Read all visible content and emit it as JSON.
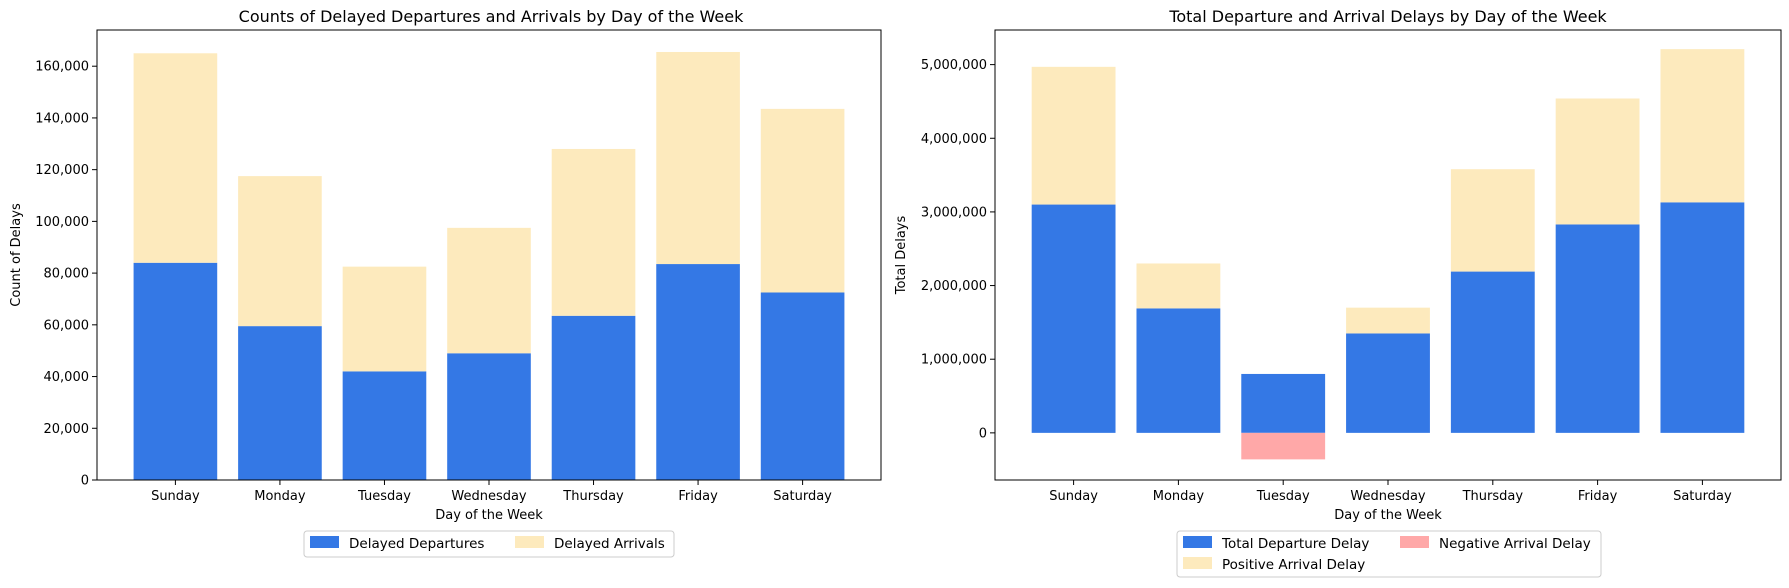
{
  "colors": {
    "departure": "#3478e5",
    "arrival": "#fdeabd",
    "negative_arrival": "#ffa8a8",
    "axes": "#000000",
    "legend_border": "#cccccc"
  },
  "chart_data": [
    {
      "type": "bar",
      "stacked": true,
      "title": "Counts of Delayed Departures and Arrivals by Day of the Week",
      "xlabel": "Day of the Week",
      "ylabel": "Count of Delays",
      "categories": [
        "Sunday",
        "Monday",
        "Tuesday",
        "Wednesday",
        "Thursday",
        "Friday",
        "Saturday"
      ],
      "ylim": [
        0,
        174000
      ],
      "yticks": [
        0,
        20000,
        40000,
        60000,
        80000,
        100000,
        120000,
        140000,
        160000
      ],
      "ytick_labels": [
        "0",
        "20,000",
        "40,000",
        "60,000",
        "80,000",
        "100,000",
        "120,000",
        "140,000",
        "160,000"
      ],
      "legend_position": "bottom-center",
      "series": [
        {
          "name": "Delayed Departures",
          "color_key": "departure",
          "values": [
            84000,
            59500,
            42000,
            49000,
            63500,
            83500,
            72500
          ]
        },
        {
          "name": "Delayed Arrivals",
          "color_key": "arrival",
          "values": [
            81000,
            58000,
            40500,
            48500,
            64500,
            82000,
            71000
          ]
        }
      ]
    },
    {
      "type": "bar",
      "stacked": true,
      "title": "Total Departure and Arrival Delays by Day of the Week",
      "xlabel": "Day of the Week",
      "ylabel": "Total Delays",
      "categories": [
        "Sunday",
        "Monday",
        "Tuesday",
        "Wednesday",
        "Thursday",
        "Friday",
        "Saturday"
      ],
      "ylim": [
        -640000,
        5470000
      ],
      "yticks": [
        0,
        1000000,
        2000000,
        3000000,
        4000000,
        5000000
      ],
      "ytick_labels": [
        "0",
        "1,000,000",
        "2,000,000",
        "3,000,000",
        "4,000,000",
        "5,000,000"
      ],
      "legend_position": "bottom-center",
      "series": [
        {
          "name": "Total Departure Delay",
          "color_key": "departure",
          "values": [
            3100000,
            1690000,
            800000,
            1350000,
            2190000,
            2830000,
            3130000
          ]
        },
        {
          "name": "Positive Arrival Delay",
          "color_key": "arrival",
          "values": [
            1870000,
            610000,
            0,
            350000,
            1390000,
            1710000,
            2080000
          ]
        },
        {
          "name": "Negative Arrival Delay",
          "color_key": "negative_arrival",
          "values": [
            0,
            0,
            -360000,
            0,
            0,
            0,
            0
          ]
        }
      ]
    }
  ]
}
